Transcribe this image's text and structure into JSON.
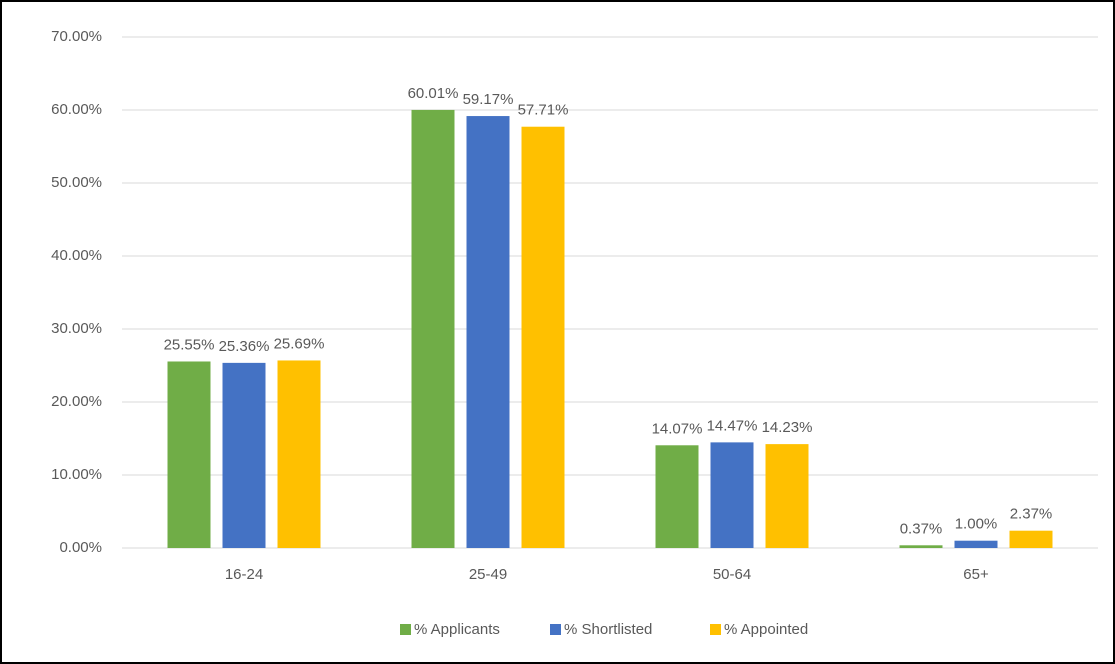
{
  "chart_data": {
    "type": "bar",
    "categories": [
      "16-24",
      "25-49",
      "50-64",
      "65+"
    ],
    "series": [
      {
        "name": "% Applicants",
        "color": "#70ad47",
        "values": [
          25.55,
          60.01,
          14.07,
          0.37
        ],
        "value_labels": [
          "25.55%",
          "60.01%",
          "14.07%",
          "0.37%"
        ]
      },
      {
        "name": "% Shortlisted",
        "color": "#4472c4",
        "values": [
          25.36,
          59.17,
          14.47,
          1.0
        ],
        "value_labels": [
          "25.36%",
          "59.17%",
          "14.47%",
          "1.00%"
        ]
      },
      {
        "name": "% Appointed",
        "color": "#ffc000",
        "values": [
          25.69,
          57.71,
          14.23,
          2.37
        ],
        "value_labels": [
          "25.69%",
          "57.71%",
          "14.23%",
          "2.37%"
        ]
      }
    ],
    "ylim": [
      0,
      70
    ],
    "yticks": [
      {
        "value": 0,
        "label": "0.00%"
      },
      {
        "value": 10,
        "label": "10.00%"
      },
      {
        "value": 20,
        "label": "20.00%"
      },
      {
        "value": 30,
        "label": "30.00%"
      },
      {
        "value": 40,
        "label": "40.00%"
      },
      {
        "value": 50,
        "label": "50.00%"
      },
      {
        "value": 60,
        "label": "60.00%"
      },
      {
        "value": 70,
        "label": "70.00%"
      }
    ],
    "grid": true,
    "legend": "bottom"
  }
}
